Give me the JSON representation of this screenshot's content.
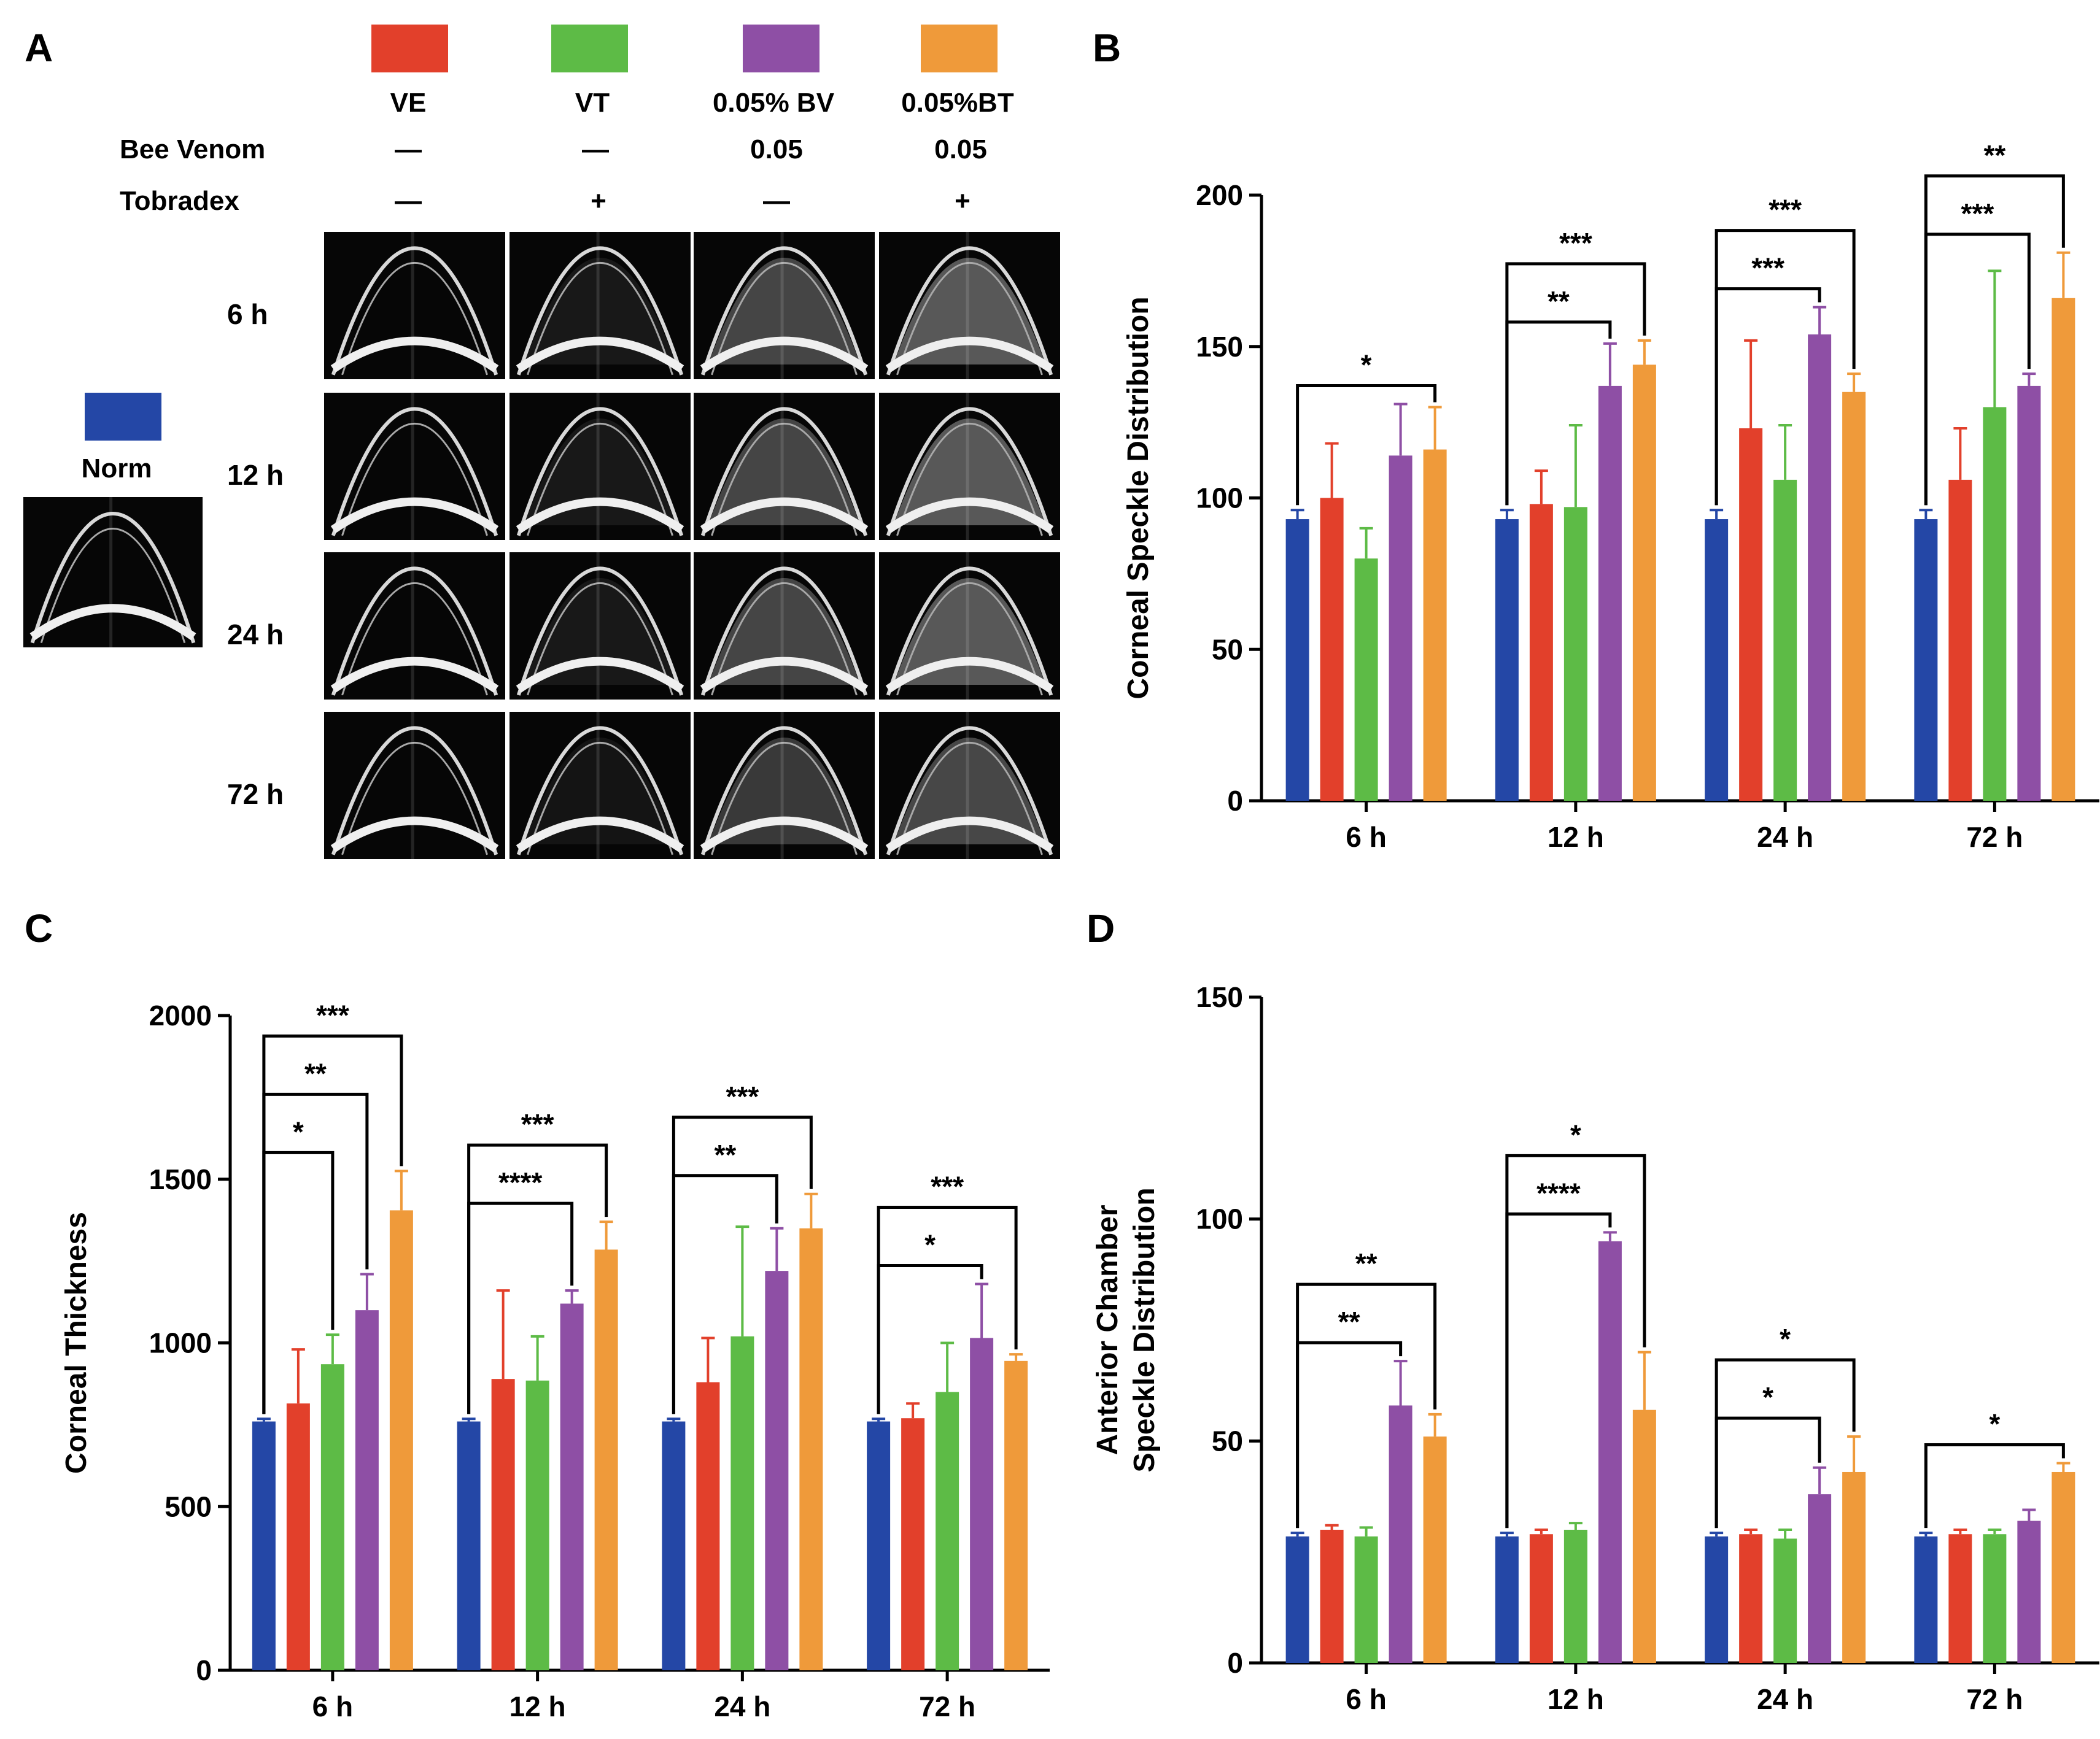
{
  "panel_labels": {
    "A": "A",
    "B": "B",
    "C": "C",
    "D": "D"
  },
  "colors": {
    "norm": "#2447a6",
    "VE": "#e2402b",
    "VT": "#5dbb46",
    "BV": "#8e4fa5",
    "BT": "#ef9a3a"
  },
  "legend": {
    "groups": [
      "VE",
      "VT",
      "0.05% BV",
      "0.05%BT"
    ],
    "bee_venom_label": "Bee Venom",
    "bee_venom_values": [
      "—",
      "—",
      "0.05",
      "0.05"
    ],
    "tobradex_label": "Tobradex",
    "tobradex_values": [
      "—",
      "+",
      "—",
      "+"
    ],
    "norm_label": "Norm"
  },
  "oct": {
    "rows": [
      "6 h",
      "12 h",
      "24 h",
      "72 h"
    ],
    "columns": [
      "VE",
      "VT",
      "0.05% BV",
      "0.05%BT"
    ]
  },
  "chart_data": [
    {
      "panel": "B",
      "type": "bar",
      "ylabel": "Corneal Speckle Distribution",
      "ylim": [
        0,
        200
      ],
      "yticks": [
        0,
        50,
        100,
        150,
        200
      ],
      "categories": [
        "6 h",
        "12 h",
        "24 h",
        "72 h"
      ],
      "series": [
        {
          "values": [
            93,
            93,
            93,
            93
          ],
          "err": [
            3,
            3,
            3,
            3
          ]
        },
        {
          "values": [
            100,
            98,
            123,
            106
          ],
          "err": [
            18,
            11,
            29,
            17
          ]
        },
        {
          "values": [
            80,
            97,
            106,
            130
          ],
          "err": [
            10,
            27,
            18,
            45
          ]
        },
        {
          "values": [
            114,
            137,
            154,
            137
          ],
          "err": [
            17,
            14,
            9,
            4
          ]
        },
        {
          "values": [
            116,
            144,
            135,
            166
          ],
          "err": [
            14,
            8,
            6,
            15
          ]
        }
      ],
      "brackets": [
        {
          "cat": 0,
          "to": 4,
          "level": 1,
          "label": "*"
        },
        {
          "cat": 1,
          "to": 3,
          "level": 1,
          "label": "**"
        },
        {
          "cat": 1,
          "to": 4,
          "level": 2,
          "label": "***"
        },
        {
          "cat": 2,
          "to": 3,
          "level": 1,
          "label": "***"
        },
        {
          "cat": 2,
          "to": 4,
          "level": 2,
          "label": "***"
        },
        {
          "cat": 3,
          "to": 3,
          "level": 1,
          "label": "***"
        },
        {
          "cat": 3,
          "to": 4,
          "level": 2,
          "label": "**"
        }
      ]
    },
    {
      "panel": "C",
      "type": "bar",
      "ylabel": "Corneal Thickness",
      "ylim": [
        0,
        2000
      ],
      "yticks": [
        0,
        500,
        1000,
        1500,
        2000
      ],
      "categories": [
        "6 h",
        "12 h",
        "24 h",
        "72 h"
      ],
      "series": [
        {
          "values": [
            760,
            760,
            760,
            760
          ],
          "err": [
            8,
            8,
            8,
            8
          ]
        },
        {
          "values": [
            815,
            890,
            880,
            770
          ],
          "err": [
            165,
            270,
            135,
            45
          ]
        },
        {
          "values": [
            935,
            885,
            1020,
            850
          ],
          "err": [
            90,
            135,
            335,
            150
          ]
        },
        {
          "values": [
            1100,
            1120,
            1220,
            1015
          ],
          "err": [
            110,
            40,
            130,
            165
          ]
        },
        {
          "values": [
            1405,
            1285,
            1350,
            945
          ],
          "err": [
            120,
            85,
            105,
            20
          ]
        }
      ],
      "brackets": [
        {
          "cat": 0,
          "to": 2,
          "level": 1,
          "label": "*"
        },
        {
          "cat": 0,
          "to": 3,
          "level": 2,
          "label": "**"
        },
        {
          "cat": 0,
          "to": 4,
          "level": 3,
          "label": "***"
        },
        {
          "cat": 1,
          "to": 3,
          "level": 1,
          "label": "****"
        },
        {
          "cat": 1,
          "to": 4,
          "level": 2,
          "label": "***"
        },
        {
          "cat": 2,
          "to": 3,
          "level": 1,
          "label": "**"
        },
        {
          "cat": 2,
          "to": 4,
          "level": 2,
          "label": "***"
        },
        {
          "cat": 3,
          "to": 3,
          "level": 1,
          "label": "*"
        },
        {
          "cat": 3,
          "to": 4,
          "level": 2,
          "label": "***"
        }
      ]
    },
    {
      "panel": "D",
      "type": "bar",
      "ylabel": "Anterior Chamber\nSpeckle Distribution",
      "ylim": [
        0,
        150
      ],
      "yticks": [
        0,
        50,
        100,
        150
      ],
      "categories": [
        "6 h",
        "12 h",
        "24 h",
        "72 h"
      ],
      "series": [
        {
          "values": [
            28.5,
            28.5,
            28.5,
            28.5
          ],
          "err": [
            0.8,
            0.8,
            0.8,
            0.8
          ]
        },
        {
          "values": [
            30,
            29,
            29,
            29
          ],
          "err": [
            1,
            1,
            1,
            1
          ]
        },
        {
          "values": [
            28.5,
            30,
            28,
            29
          ],
          "err": [
            2,
            1.5,
            2,
            1
          ]
        },
        {
          "values": [
            58,
            95,
            38,
            32
          ],
          "err": [
            10,
            2,
            6,
            2.5
          ]
        },
        {
          "values": [
            51,
            57,
            43,
            43
          ],
          "err": [
            5,
            13,
            8,
            2
          ]
        }
      ],
      "brackets": [
        {
          "cat": 0,
          "to": 3,
          "level": 1,
          "label": "**"
        },
        {
          "cat": 0,
          "to": 4,
          "level": 2,
          "label": "**"
        },
        {
          "cat": 1,
          "to": 3,
          "level": 1,
          "label": "****"
        },
        {
          "cat": 1,
          "to": 4,
          "level": 2,
          "label": "*"
        },
        {
          "cat": 2,
          "to": 3,
          "level": 1,
          "label": "*"
        },
        {
          "cat": 2,
          "to": 4,
          "level": 2,
          "label": "*"
        },
        {
          "cat": 3,
          "to": 4,
          "level": 1,
          "label": "*"
        }
      ]
    }
  ]
}
